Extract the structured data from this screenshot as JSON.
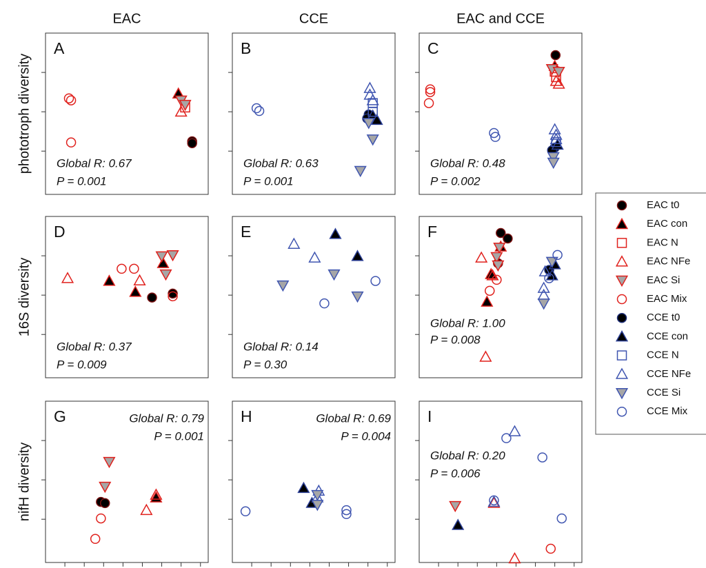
{
  "column_titles": [
    "EAC",
    "CCE",
    "EAC and CCE"
  ],
  "row_titles": [
    "phototroph diversity",
    "16S diversity",
    "nifH diversity"
  ],
  "legend": {
    "series": [
      {
        "name": "EAC t0",
        "marker": "circle",
        "fill": "#000000",
        "stroke": "#7a1010"
      },
      {
        "name": "EAC con",
        "marker": "triangle-up",
        "fill": "#000000",
        "stroke": "#e0201c"
      },
      {
        "name": "EAC N",
        "marker": "square",
        "fill": "none",
        "stroke": "#e0201c"
      },
      {
        "name": "EAC NFe",
        "marker": "triangle-up",
        "fill": "none",
        "stroke": "#e0201c"
      },
      {
        "name": "EAC Si",
        "marker": "triangle-down",
        "fill": "#a6a6a6",
        "stroke": "#e0201c"
      },
      {
        "name": "EAC Mix",
        "marker": "circle",
        "fill": "none",
        "stroke": "#e0201c"
      },
      {
        "name": "CCE t0",
        "marker": "circle",
        "fill": "#000000",
        "stroke": "#1f2f7a"
      },
      {
        "name": "CCE con",
        "marker": "triangle-up",
        "fill": "#000000",
        "stroke": "#2b3f96"
      },
      {
        "name": "CCE N",
        "marker": "square",
        "fill": "none",
        "stroke": "#3f55b0"
      },
      {
        "name": "CCE NFe",
        "marker": "triangle-up",
        "fill": "none",
        "stroke": "#3f55b0"
      },
      {
        "name": "CCE Si",
        "marker": "triangle-down",
        "fill": "#a6a6a6",
        "stroke": "#3f55b0"
      },
      {
        "name": "CCE Mix",
        "marker": "circle",
        "fill": "none",
        "stroke": "#3f55b0"
      }
    ]
  },
  "chart_data": [
    {
      "type": "scatter",
      "label": "A",
      "annotation": [
        "Global R: 0.67",
        "P = 0.001"
      ],
      "annotation_position": "bottom-left",
      "xlim": [
        0,
        8.4
      ],
      "ylim": [
        -1.1,
        3.0
      ],
      "yticks": [
        0,
        1,
        2
      ],
      "series": [
        {
          "x": [
            7.57,
            7.57
          ],
          "y": [
            0.25,
            0.2
          ]
        },
        {
          "x": [
            6.86
          ],
          "y": [
            1.46
          ]
        },
        {
          "x": [
            7.21
          ],
          "y": [
            1.11
          ]
        },
        {
          "x": [
            7.0
          ],
          "y": [
            1.0
          ]
        },
        {
          "x": [
            7.0,
            7.21
          ],
          "y": [
            1.29,
            1.18
          ]
        },
        {
          "x": [
            1.21,
            1.32,
            1.32
          ],
          "y": [
            1.34,
            1.29,
            0.22
          ]
        },
        {
          "x": [],
          "y": []
        },
        {
          "x": [],
          "y": []
        },
        {
          "x": [],
          "y": []
        },
        {
          "x": [],
          "y": []
        },
        {
          "x": [],
          "y": []
        },
        {
          "x": [],
          "y": []
        }
      ]
    },
    {
      "type": "scatter",
      "label": "B",
      "annotation": [
        "Global R: 0.63",
        "P = 0.001"
      ],
      "annotation_position": "bottom-left",
      "xlim": [
        0,
        8.4
      ],
      "ylim": [
        -1.1,
        3.0
      ],
      "yticks": [
        0,
        1,
        2
      ],
      "series": [
        {
          "x": [],
          "y": []
        },
        {
          "x": [],
          "y": []
        },
        {
          "x": [],
          "y": []
        },
        {
          "x": [],
          "y": []
        },
        {
          "x": [],
          "y": []
        },
        {
          "x": [],
          "y": []
        },
        {
          "x": [
            7.04,
            6.96
          ],
          "y": [
            0.93,
            0.83
          ]
        },
        {
          "x": [
            7.25,
            7.46
          ],
          "y": [
            0.9,
            0.79
          ]
        },
        {
          "x": [
            7.25,
            7.25
          ],
          "y": [
            1.22,
            1.0
          ]
        },
        {
          "x": [
            7.1,
            7.1,
            7.25
          ],
          "y": [
            1.6,
            1.43,
            1.29
          ]
        },
        {
          "x": [
            7.04,
            7.25,
            6.61
          ],
          "y": [
            0.72,
            0.3,
            -0.5
          ]
        },
        {
          "x": [
            1.25,
            1.39
          ],
          "y": [
            1.09,
            1.02
          ]
        }
      ]
    },
    {
      "type": "scatter",
      "label": "C",
      "annotation": [
        "Global R: 0.48",
        "P = 0.002"
      ],
      "annotation_position": "bottom-left",
      "xlim": [
        0,
        8.4
      ],
      "ylim": [
        -1.1,
        3.0
      ],
      "yticks": [
        0,
        1,
        2
      ],
      "series": [
        {
          "x": [
            7.04
          ],
          "y": [
            2.44
          ]
        },
        {
          "x": [
            7.0
          ],
          "y": [
            2.16
          ]
        },
        {
          "x": [
            7.0,
            7.07
          ],
          "y": [
            2.02,
            1.88
          ]
        },
        {
          "x": [
            7.07,
            7.21
          ],
          "y": [
            1.78,
            1.71
          ]
        },
        {
          "x": [
            6.86,
            7.21
          ],
          "y": [
            2.09,
            2.02
          ]
        },
        {
          "x": [
            0.57,
            0.57,
            0.5
          ],
          "y": [
            1.57,
            1.5,
            1.22
          ]
        },
        {
          "x": [
            7.0,
            6.86
          ],
          "y": [
            0.09,
            0.02
          ]
        },
        {
          "x": [
            7.14
          ],
          "y": [
            0.16
          ]
        },
        {
          "x": [
            7.07
          ],
          "y": [
            0.23
          ]
        },
        {
          "x": [
            7.0,
            7.07,
            7.07
          ],
          "y": [
            0.55,
            0.41,
            0.3
          ]
        },
        {
          "x": [
            6.93,
            6.93
          ],
          "y": [
            -0.15,
            -0.29
          ]
        },
        {
          "x": [
            3.86,
            3.93
          ],
          "y": [
            0.46,
            0.36
          ]
        }
      ]
    },
    {
      "type": "scatter",
      "label": "D",
      "annotation": [
        "Global R: 0.37",
        "P = 0.009"
      ],
      "annotation_position": "bottom-left",
      "xlim": [
        0,
        8.4
      ],
      "ylim": [
        -1.1,
        3.0
      ],
      "yticks": [
        0,
        1,
        2
      ],
      "series": [
        {
          "x": [
            5.5,
            6.57
          ],
          "y": [
            0.94,
            1.04
          ]
        },
        {
          "x": [
            3.29,
            4.64,
            6.07
          ],
          "y": [
            1.36,
            1.08,
            1.81
          ]
        },
        {
          "x": [],
          "y": []
        },
        {
          "x": [
            1.14,
            4.86
          ],
          "y": [
            1.43,
            1.37
          ]
        },
        {
          "x": [
            6.0,
            6.57,
            6.21
          ],
          "y": [
            1.99,
            2.02,
            1.53
          ]
        },
        {
          "x": [
            3.93,
            4.57,
            6.57
          ],
          "y": [
            1.67,
            1.67,
            0.97
          ]
        },
        {
          "x": [],
          "y": []
        },
        {
          "x": [],
          "y": []
        },
        {
          "x": [],
          "y": []
        },
        {
          "x": [],
          "y": []
        },
        {
          "x": [],
          "y": []
        },
        {
          "x": [],
          "y": []
        }
      ]
    },
    {
      "type": "scatter",
      "label": "E",
      "annotation": [
        "Global R: 0.14",
        "P = 0.30"
      ],
      "annotation_position": "bottom-left",
      "xlim": [
        0,
        8.4
      ],
      "ylim": [
        -1.1,
        3.0
      ],
      "yticks": [
        0,
        1,
        2
      ],
      "series": [
        {
          "x": [],
          "y": []
        },
        {
          "x": [],
          "y": []
        },
        {
          "x": [],
          "y": []
        },
        {
          "x": [],
          "y": []
        },
        {
          "x": [],
          "y": []
        },
        {
          "x": [],
          "y": []
        },
        {
          "x": [],
          "y": []
        },
        {
          "x": [
            5.32,
            6.46
          ],
          "y": [
            2.55,
            1.99
          ]
        },
        {
          "x": [],
          "y": []
        },
        {
          "x": [
            3.18,
            4.25
          ],
          "y": [
            2.3,
            1.95
          ]
        },
        {
          "x": [
            5.25,
            2.61,
            6.46
          ],
          "y": [
            1.53,
            1.25,
            0.97
          ]
        },
        {
          "x": [
            7.39,
            4.75
          ],
          "y": [
            1.36,
            0.79
          ]
        }
      ]
    },
    {
      "type": "scatter",
      "label": "F",
      "annotation": [
        "Global R: 1.00",
        "P = 0.008"
      ],
      "annotation_position": "lower-left",
      "xlim": [
        0,
        8.4
      ],
      "ylim": [
        -1.1,
        3.0
      ],
      "yticks": [
        0,
        1,
        2
      ],
      "series": [
        {
          "x": [
            4.21,
            4.57,
            4.07
          ],
          "y": [
            2.58,
            2.44,
            1.81
          ]
        },
        {
          "x": [
            4.21,
            3.71,
            3.5
          ],
          "y": [
            2.23,
            1.53,
            0.83
          ]
        },
        {
          "x": [],
          "y": []
        },
        {
          "x": [
            3.21,
            3.79,
            3.43
          ],
          "y": [
            1.95,
            1.5,
            -0.57
          ]
        },
        {
          "x": [
            4.14,
            4.0,
            4.07
          ],
          "y": [
            2.21,
            1.97,
            1.76
          ]
        },
        {
          "x": [
            4.0,
            3.64
          ],
          "y": [
            1.39,
            1.11
          ]
        },
        {
          "x": [
            6.71
          ],
          "y": [
            1.64
          ]
        },
        {
          "x": [
            7.0,
            6.86
          ],
          "y": [
            1.78,
            1.5
          ]
        },
        {
          "x": [],
          "y": []
        },
        {
          "x": [
            6.5,
            6.43,
            6.43
          ],
          "y": [
            1.6,
            1.18,
            1.0
          ]
        },
        {
          "x": [
            6.86,
            6.43
          ],
          "y": [
            1.85,
            0.79
          ]
        },
        {
          "x": [
            7.14,
            6.71
          ],
          "y": [
            2.02,
            1.43
          ]
        }
      ]
    },
    {
      "type": "scatter",
      "label": "G",
      "annotation": [
        "Global R: 0.79",
        "P = 0.001"
      ],
      "annotation_position": "top-right",
      "xlim": [
        0,
        8.4
      ],
      "ylim": [
        -1.1,
        3.0
      ],
      "xticks": [
        1,
        2,
        3,
        4,
        5,
        6,
        7,
        8
      ],
      "yticks": [
        0,
        1,
        2
      ],
      "series": [
        {
          "x": [
            2.86,
            3.07
          ],
          "y": [
            0.44,
            0.41
          ]
        },
        {
          "x": [
            5.71
          ],
          "y": [
            0.55
          ]
        },
        {
          "x": [],
          "y": []
        },
        {
          "x": [
            5.71,
            5.21
          ],
          "y": [
            0.62,
            0.23
          ]
        },
        {
          "x": [
            3.29,
            3.07
          ],
          "y": [
            1.46,
            0.83
          ]
        },
        {
          "x": [
            2.86,
            2.57
          ],
          "y": [
            0.02,
            -0.5
          ]
        },
        {
          "x": [],
          "y": []
        },
        {
          "x": [],
          "y": []
        },
        {
          "x": [],
          "y": []
        },
        {
          "x": [],
          "y": []
        },
        {
          "x": [],
          "y": []
        },
        {
          "x": [],
          "y": []
        }
      ]
    },
    {
      "type": "scatter",
      "label": "H",
      "annotation": [
        "Global R: 0.69",
        "P = 0.004"
      ],
      "annotation_position": "top-right",
      "xlim": [
        0,
        8.4
      ],
      "ylim": [
        -1.1,
        3.0
      ],
      "xticks": [
        1,
        2,
        3,
        4,
        5,
        6,
        7,
        8
      ],
      "yticks": [
        0,
        1,
        2
      ],
      "series": [
        {
          "x": [],
          "y": []
        },
        {
          "x": [],
          "y": []
        },
        {
          "x": [],
          "y": []
        },
        {
          "x": [],
          "y": []
        },
        {
          "x": [],
          "y": []
        },
        {
          "x": [],
          "y": []
        },
        {
          "x": [],
          "y": []
        },
        {
          "x": [
            3.68,
            4.11
          ],
          "y": [
            0.79,
            0.41
          ]
        },
        {
          "x": [],
          "y": []
        },
        {
          "x": [
            4.46,
            4.39
          ],
          "y": [
            0.72,
            0.55
          ]
        },
        {
          "x": [
            4.39,
            4.39
          ],
          "y": [
            0.62,
            0.37
          ]
        },
        {
          "x": [
            0.68,
            5.89,
            5.89
          ],
          "y": [
            0.2,
            0.23,
            0.13
          ]
        }
      ]
    },
    {
      "type": "scatter",
      "label": "I",
      "annotation": [
        "Global R: 0.20",
        "P = 0.006"
      ],
      "annotation_position": "upper-left",
      "xlim": [
        0,
        8.4
      ],
      "ylim": [
        -1.1,
        3.0
      ],
      "xticks": [
        1,
        2,
        3,
        4,
        5,
        6,
        7,
        8
      ],
      "yticks": [
        0,
        1,
        2
      ],
      "series": [
        {
          "x": [],
          "y": []
        },
        {
          "x": [],
          "y": []
        },
        {
          "x": [],
          "y": []
        },
        {
          "x": [
            3.86,
            4.93
          ],
          "y": [
            0.41,
            -1.0
          ]
        },
        {
          "x": [
            1.86
          ],
          "y": [
            0.34
          ]
        },
        {
          "x": [
            6.79
          ],
          "y": [
            -0.75
          ]
        },
        {
          "x": [],
          "y": []
        },
        {
          "x": [
            2.0
          ],
          "y": [
            -0.15
          ]
        },
        {
          "x": [],
          "y": []
        },
        {
          "x": [
            4.93,
            3.86
          ],
          "y": [
            2.23,
            0.44
          ]
        },
        {
          "x": [],
          "y": []
        },
        {
          "x": [
            4.5,
            6.36,
            7.36,
            3.86
          ],
          "y": [
            2.06,
            1.57,
            0.02,
            0.48
          ]
        }
      ]
    }
  ]
}
